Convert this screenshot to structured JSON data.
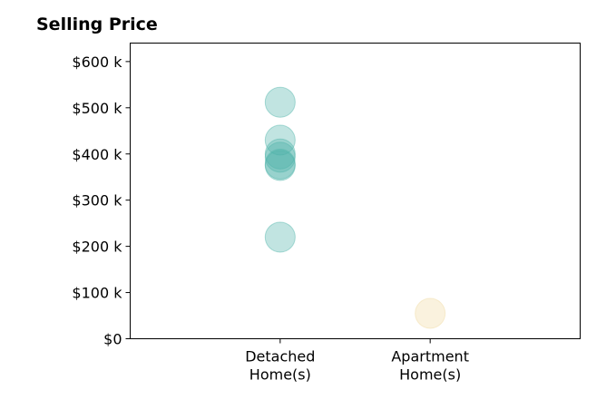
{
  "chart_data": {
    "type": "scatter",
    "title": "Selling Price",
    "xlabel": "",
    "ylabel": "",
    "categories": [
      [
        "Detached",
        "Home(s)"
      ],
      [
        "Apartment",
        "Home(s)"
      ]
    ],
    "xlim": [
      -1,
      2
    ],
    "ylim": [
      0,
      640000
    ],
    "yticks": [
      0,
      100000,
      200000,
      300000,
      400000,
      500000,
      600000
    ],
    "ytick_labels": [
      "$0",
      "$100 k",
      "$200 k",
      "$300 k",
      "$400 k",
      "$500 k",
      "$600 k"
    ],
    "grid": false,
    "legend": "none",
    "series": [
      {
        "category_index": 0,
        "color": "#4db3a8",
        "values": [
          512000,
          430000,
          400000,
          393000,
          378000,
          375000,
          220000
        ]
      },
      {
        "category_index": 1,
        "color": "#f0d9a0",
        "values": [
          55000
        ]
      }
    ]
  }
}
